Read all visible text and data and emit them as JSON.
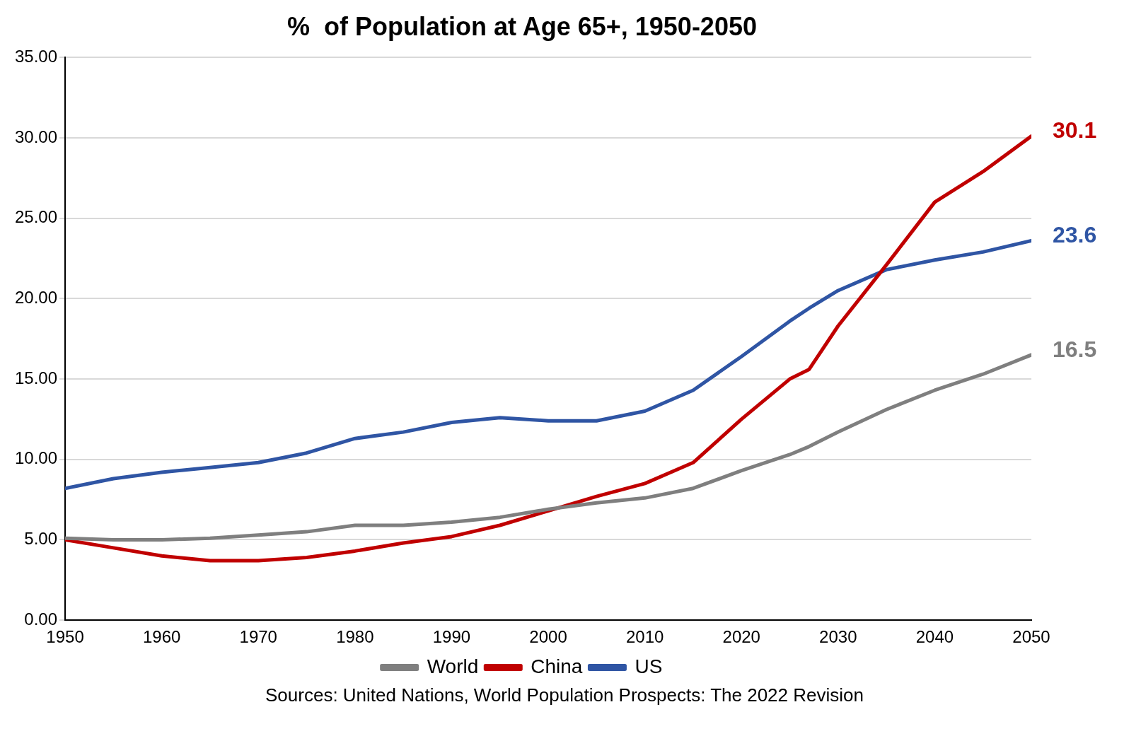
{
  "chart_data": {
    "type": "line",
    "title": "%  of Population at Age 65+, 1950-2050",
    "x": [
      1950,
      1955,
      1960,
      1965,
      1970,
      1975,
      1980,
      1985,
      1990,
      1995,
      2000,
      2005,
      2010,
      2015,
      2020,
      2025,
      2027,
      2030,
      2035,
      2040,
      2045,
      2050
    ],
    "series": [
      {
        "name": "World",
        "color": "#7f7f7f",
        "values": [
          5.1,
          5.0,
          5.0,
          5.1,
          5.3,
          5.5,
          5.9,
          5.9,
          6.1,
          6.4,
          6.9,
          7.3,
          7.6,
          8.2,
          9.3,
          10.3,
          10.8,
          11.7,
          13.1,
          14.3,
          15.3,
          16.5
        ],
        "value_labels": [
          null,
          null,
          null,
          null,
          null,
          null,
          null,
          null,
          null,
          null,
          null,
          null,
          null,
          null,
          null,
          null,
          null,
          null,
          null,
          null,
          null,
          "16.5"
        ]
      },
      {
        "name": "China",
        "color": "#c00000",
        "values": [
          5.0,
          4.5,
          4.0,
          3.7,
          3.7,
          3.9,
          4.3,
          4.8,
          5.2,
          5.9,
          6.8,
          7.7,
          8.5,
          9.8,
          12.5,
          15.0,
          15.6,
          18.3,
          22.1,
          26.0,
          27.9,
          30.1
        ],
        "value_labels": [
          null,
          null,
          null,
          null,
          null,
          null,
          null,
          null,
          null,
          null,
          null,
          null,
          null,
          null,
          null,
          null,
          null,
          null,
          null,
          null,
          null,
          "30.1"
        ]
      },
      {
        "name": "US",
        "color": "#2f55a4",
        "values": [
          8.2,
          8.8,
          9.2,
          9.5,
          9.8,
          10.4,
          11.3,
          11.7,
          12.3,
          12.6,
          12.4,
          12.4,
          13.0,
          14.3,
          16.4,
          18.6,
          19.4,
          20.5,
          21.8,
          22.4,
          22.9,
          23.6
        ],
        "value_labels": [
          null,
          null,
          null,
          null,
          null,
          null,
          null,
          null,
          null,
          null,
          null,
          null,
          null,
          null,
          null,
          null,
          null,
          null,
          null,
          null,
          null,
          "23.6"
        ]
      }
    ],
    "xlim": [
      1950,
      2050
    ],
    "xticks": [
      1950,
      1960,
      1970,
      1980,
      1990,
      2000,
      2010,
      2020,
      2030,
      2040,
      2050
    ],
    "ylim": [
      0,
      35
    ],
    "yticks": [
      {
        "value": 0,
        "label": "0.00"
      },
      {
        "value": 5,
        "label": "5.00"
      },
      {
        "value": 10,
        "label": "10.00"
      },
      {
        "value": 15,
        "label": "15.00"
      },
      {
        "value": 20,
        "label": "20.00"
      },
      {
        "value": 25,
        "label": "25.00"
      },
      {
        "value": 30,
        "label": "30.00"
      },
      {
        "value": 35,
        "label": "35.00"
      }
    ],
    "grid": "y",
    "legend": "bottom",
    "marker": "none",
    "line_style": "solid",
    "annotations": [
      "Sources: United Nations, World Population Prospects: The 2022 Revision"
    ]
  }
}
